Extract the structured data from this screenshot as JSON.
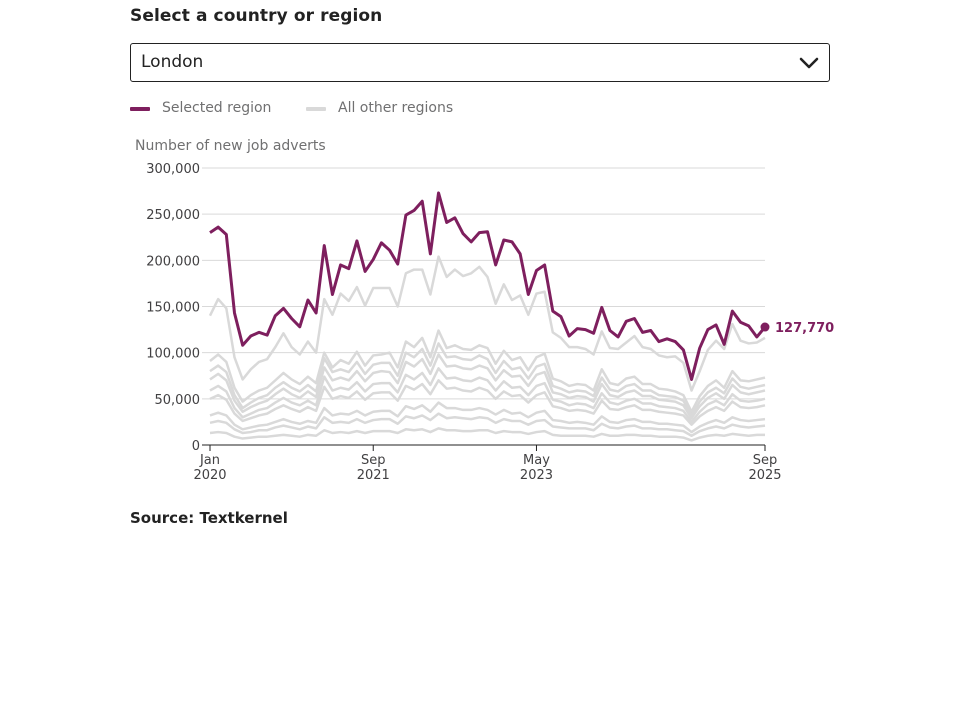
{
  "selector": {
    "heading": "Select a country or region",
    "selected_value": "London"
  },
  "legend": {
    "selected_label": "Selected region",
    "others_label": "All other regions"
  },
  "source": "Source: Textkernel",
  "colors": {
    "selected": "#7e1f5e",
    "others": "#d9d9d9",
    "gridline": "#d9d9d9",
    "axis": "#222222"
  },
  "chart_data": {
    "type": "line",
    "ylabel": "Number of new job adverts",
    "ylim": [
      0,
      300000
    ],
    "yticks": [
      0,
      50000,
      100000,
      150000,
      200000,
      250000,
      300000
    ],
    "ytick_labels": [
      "0",
      "50,000",
      "100,000",
      "150,000",
      "200,000",
      "250,000",
      "300,000"
    ],
    "xlim": [
      "2020-01",
      "2025-09"
    ],
    "xticks": [
      {
        "date": "2020-01",
        "month": "Jan",
        "year": "2020"
      },
      {
        "date": "2021-09",
        "month": "Sep",
        "year": "2021"
      },
      {
        "date": "2023-05",
        "month": "May",
        "year": "2023"
      },
      {
        "date": "2025-09",
        "month": "Sep",
        "year": "2025"
      }
    ],
    "x": [
      "2020-01",
      "2020-02",
      "2020-03",
      "2020-04",
      "2020-05",
      "2020-06",
      "2020-07",
      "2020-08",
      "2020-09",
      "2020-10",
      "2020-11",
      "2020-12",
      "2021-01",
      "2021-02",
      "2021-03",
      "2021-04",
      "2021-05",
      "2021-06",
      "2021-07",
      "2021-08",
      "2021-09",
      "2021-10",
      "2021-11",
      "2021-12",
      "2022-01",
      "2022-02",
      "2022-03",
      "2022-04",
      "2022-05",
      "2022-06",
      "2022-07",
      "2022-08",
      "2022-09",
      "2022-10",
      "2022-11",
      "2022-12",
      "2023-01",
      "2023-02",
      "2023-03",
      "2023-04",
      "2023-05",
      "2023-06",
      "2023-07",
      "2023-08",
      "2023-09",
      "2023-10",
      "2023-11",
      "2023-12",
      "2024-01",
      "2024-02",
      "2024-03",
      "2024-04",
      "2024-05",
      "2024-06",
      "2024-07",
      "2024-08",
      "2024-09",
      "2024-10",
      "2024-11",
      "2024-12",
      "2025-01",
      "2025-02",
      "2025-03",
      "2025-04",
      "2025-05",
      "2025-06",
      "2025-07",
      "2025-08",
      "2025-09"
    ],
    "selected_series": {
      "name": "London",
      "end_label": "127,770",
      "values": [
        230000,
        236000,
        228000,
        143000,
        108000,
        118000,
        122000,
        119000,
        140000,
        148000,
        137000,
        128000,
        157000,
        143000,
        216000,
        163000,
        195000,
        191000,
        221000,
        188000,
        201000,
        219000,
        211000,
        196000,
        249000,
        254000,
        264000,
        207000,
        273000,
        241000,
        246000,
        229000,
        220000,
        230000,
        231000,
        195000,
        222000,
        220000,
        207000,
        163000,
        189000,
        195000,
        145000,
        139000,
        118000,
        126000,
        125000,
        121000,
        149000,
        124000,
        117000,
        134000,
        137000,
        122000,
        124000,
        112000,
        115000,
        112000,
        103000,
        71000,
        105000,
        125000,
        130000,
        109000,
        145000,
        133000,
        129000,
        117000,
        127770
      ]
    },
    "other_series": [
      {
        "values": [
          140000,
          158000,
          148000,
          95000,
          71000,
          82000,
          90000,
          93000,
          106000,
          121000,
          106000,
          98000,
          112000,
          100000,
          158000,
          141000,
          164000,
          156000,
          171000,
          151000,
          170000,
          170000,
          170000,
          150000,
          186000,
          190000,
          190000,
          163000,
          204000,
          182000,
          190000,
          183000,
          186000,
          193000,
          182000,
          153000,
          174000,
          157000,
          162000,
          141000,
          164000,
          166000,
          122000,
          116000,
          106000,
          106000,
          104000,
          98000,
          123000,
          105000,
          104000,
          111000,
          118000,
          106000,
          104000,
          97000,
          95000,
          96000,
          89000,
          59000,
          80000,
          103000,
          113000,
          104000,
          131000,
          113000,
          110000,
          111000,
          116000
        ]
      },
      {
        "values": [
          91000,
          98000,
          90000,
          62000,
          47000,
          54000,
          59000,
          62000,
          70000,
          78000,
          71000,
          66000,
          74000,
          67000,
          100000,
          84000,
          92000,
          88000,
          101000,
          86000,
          97000,
          98000,
          100000,
          84000,
          112000,
          106000,
          116000,
          95000,
          124000,
          105000,
          108000,
          104000,
          103000,
          108000,
          105000,
          88000,
          102000,
          92000,
          95000,
          81000,
          95000,
          99000,
          72000,
          69000,
          64000,
          66000,
          65000,
          59000,
          82000,
          67000,
          65000,
          72000,
          74000,
          66000,
          66000,
          61000,
          60000,
          58000,
          54000,
          36000,
          53000,
          64000,
          70000,
          62000,
          80000,
          70000,
          69000,
          71000,
          73000
        ]
      },
      {
        "values": [
          80000,
          86000,
          79000,
          54000,
          40000,
          46000,
          51000,
          54000,
          62000,
          68000,
          62000,
          58000,
          65000,
          58000,
          94000,
          79000,
          82000,
          79000,
          90000,
          77000,
          87000,
          89000,
          89000,
          75000,
          100000,
          95000,
          104000,
          86000,
          110000,
          95000,
          96000,
          93000,
          92000,
          97000,
          93000,
          78000,
          91000,
          82000,
          84000,
          72000,
          85000,
          88000,
          64000,
          61000,
          57000,
          59000,
          58000,
          53000,
          73000,
          60000,
          58000,
          64000,
          66000,
          59000,
          59000,
          54000,
          53000,
          52000,
          48000,
          32000,
          47000,
          57000,
          62000,
          56000,
          72000,
          63000,
          61000,
          63000,
          65000
        ]
      },
      {
        "values": [
          71000,
          77000,
          70000,
          48000,
          36000,
          41000,
          45000,
          48000,
          55000,
          61000,
          55000,
          51000,
          58000,
          52000,
          84000,
          70000,
          73000,
          70000,
          80000,
          69000,
          78000,
          80000,
          79000,
          67000,
          90000,
          85000,
          93000,
          77000,
          98000,
          85000,
          86000,
          83000,
          82000,
          86000,
          83000,
          70000,
          81000,
          74000,
          75000,
          64000,
          76000,
          79000,
          57000,
          55000,
          51000,
          53000,
          52000,
          47000,
          66000,
          54000,
          52000,
          57000,
          59000,
          53000,
          53000,
          49000,
          48000,
          47000,
          43000,
          29000,
          42000,
          51000,
          56000,
          50000,
          65000,
          57000,
          55000,
          57000,
          59000
        ]
      },
      {
        "values": [
          59000,
          64000,
          58000,
          40000,
          30000,
          34000,
          38000,
          40000,
          46000,
          51000,
          46000,
          43000,
          48000,
          43000,
          74000,
          59000,
          62000,
          60000,
          68000,
          58000,
          66000,
          67000,
          67000,
          57000,
          76000,
          71000,
          78000,
          65000,
          83000,
          72000,
          73000,
          70000,
          69000,
          73000,
          70000,
          59000,
          69000,
          62000,
          63000,
          54000,
          64000,
          67000,
          49000,
          47000,
          43000,
          45000,
          44000,
          40000,
          56000,
          46000,
          44000,
          48000,
          50000,
          45000,
          45000,
          42000,
          41000,
          40000,
          37000,
          25000,
          36000,
          44000,
          48000,
          43000,
          55000,
          48000,
          47000,
          48000,
          50000
        ]
      },
      {
        "values": [
          50000,
          54000,
          49000,
          34000,
          26000,
          29000,
          32000,
          34000,
          39000,
          43000,
          39000,
          36000,
          41000,
          37000,
          63000,
          50000,
          53000,
          51000,
          58000,
          49000,
          56000,
          57000,
          57000,
          48000,
          64000,
          60000,
          66000,
          55000,
          70000,
          61000,
          62000,
          59000,
          58000,
          62000,
          59000,
          50000,
          58000,
          53000,
          54000,
          46000,
          54000,
          57000,
          42000,
          40000,
          37000,
          38000,
          37000,
          34000,
          48000,
          39000,
          38000,
          41000,
          43000,
          38000,
          38000,
          36000,
          35000,
          34000,
          32000,
          22000,
          31000,
          37000,
          41000,
          37000,
          47000,
          41000,
          40000,
          41000,
          43000
        ]
      },
      {
        "values": [
          32000,
          35000,
          32000,
          22000,
          17000,
          19000,
          21000,
          22000,
          25000,
          28000,
          25000,
          23000,
          26000,
          24000,
          40000,
          32000,
          34000,
          33000,
          37000,
          32000,
          36000,
          37000,
          37000,
          31000,
          42000,
          39000,
          43000,
          36000,
          46000,
          40000,
          40000,
          38000,
          38000,
          40000,
          38000,
          33000,
          38000,
          34000,
          35000,
          30000,
          35000,
          37000,
          27000,
          26000,
          24000,
          25000,
          24000,
          22000,
          31000,
          25000,
          24000,
          27000,
          28000,
          25000,
          25000,
          23000,
          23000,
          22000,
          21000,
          14000,
          20000,
          24000,
          27000,
          24000,
          30000,
          27000,
          26000,
          27000,
          28000
        ]
      },
      {
        "values": [
          24000,
          26000,
          24000,
          17000,
          13000,
          14000,
          16000,
          16000,
          19000,
          21000,
          19000,
          17000,
          20000,
          18000,
          30000,
          24000,
          25000,
          24000,
          28000,
          24000,
          27000,
          28000,
          28000,
          23000,
          31000,
          29000,
          32000,
          27000,
          34000,
          29000,
          30000,
          29000,
          28000,
          30000,
          29000,
          24000,
          28000,
          26000,
          26000,
          22000,
          26000,
          27000,
          20000,
          19000,
          18000,
          18000,
          18000,
          16000,
          23000,
          19000,
          18000,
          20000,
          21000,
          18000,
          18000,
          17000,
          17000,
          16000,
          15000,
          10000,
          15000,
          18000,
          20000,
          18000,
          22000,
          20000,
          19000,
          20000,
          21000
        ]
      },
      {
        "values": [
          13000,
          14000,
          13000,
          9000,
          7000,
          8000,
          9000,
          9000,
          10000,
          11000,
          10000,
          9000,
          11000,
          10000,
          16000,
          13000,
          14000,
          13000,
          15000,
          13000,
          15000,
          15000,
          15000,
          13000,
          17000,
          16000,
          17000,
          14000,
          18000,
          16000,
          16000,
          15000,
          15000,
          16000,
          16000,
          13000,
          15000,
          14000,
          14000,
          12000,
          14000,
          15000,
          11000,
          10000,
          10000,
          10000,
          10000,
          9000,
          12000,
          10000,
          10000,
          11000,
          11000,
          10000,
          10000,
          9000,
          9000,
          9000,
          8000,
          5000,
          8000,
          10000,
          11000,
          10000,
          12000,
          11000,
          10000,
          11000,
          11000
        ]
      }
    ]
  }
}
